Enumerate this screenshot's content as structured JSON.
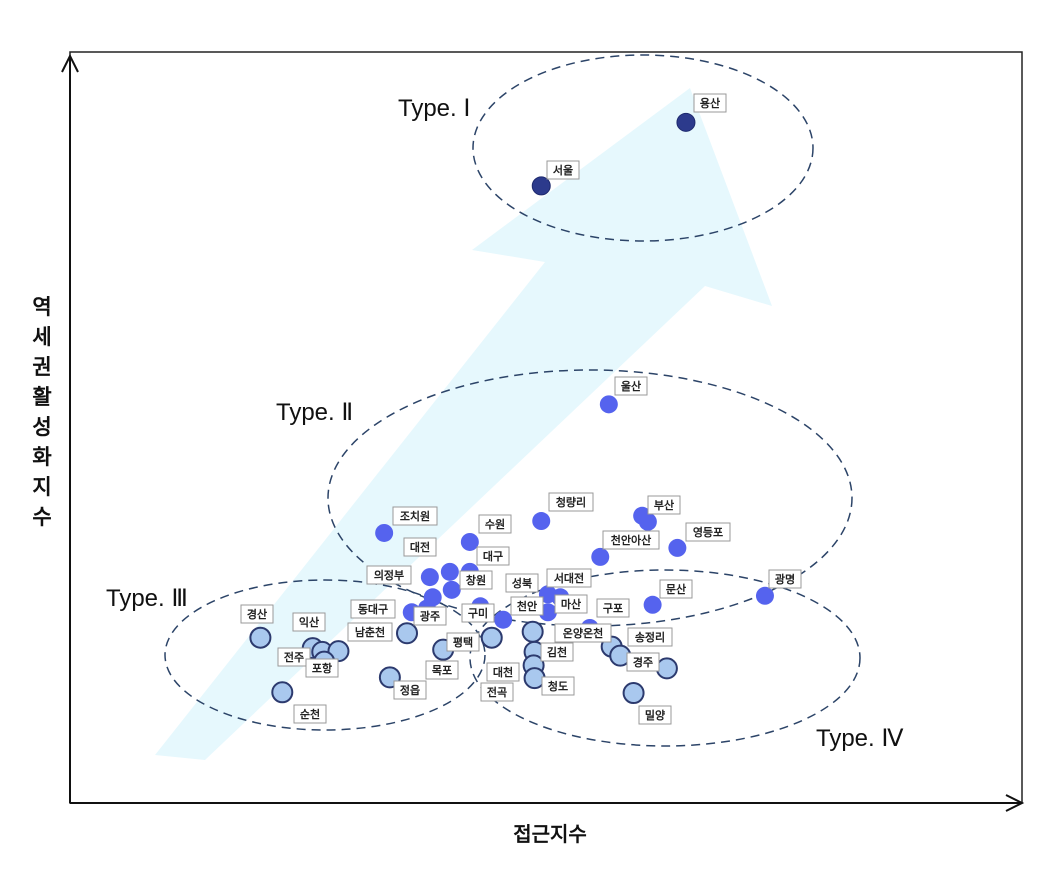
{
  "axes": {
    "ylabel": "역세권활성화지수",
    "xlabel": "접근지수"
  },
  "colors": {
    "type1": "#2c3a8c",
    "type2": "#5563ee",
    "type3": "#a9c8ee",
    "type4": "#a9c8ee",
    "border": "#2c3a6e",
    "arrow": "#e6f8fd",
    "ellipse": "#2c4468"
  },
  "chart_data": {
    "type": "scatter",
    "title": "",
    "xlabel": "접근지수",
    "ylabel": "역세권활성화지수",
    "xlim": [
      0,
      100
    ],
    "ylim": [
      0,
      100
    ],
    "groups": [
      {
        "name": "Type. Ⅰ",
        "points": [
          {
            "label": "용산",
            "x": 64.7,
            "y": 91.0
          },
          {
            "label": "서울",
            "x": 49.5,
            "y": 82.5
          }
        ]
      },
      {
        "name": "Type. Ⅱ",
        "points": [
          {
            "label": "울산",
            "x": 56.6,
            "y": 53.3
          },
          {
            "label": "청량리",
            "x": 49.5,
            "y": 37.7
          },
          {
            "label": "부산",
            "x": 60.1,
            "y": 38.4
          },
          {
            "label": "",
            "x": 60.7,
            "y": 37.6
          },
          {
            "label": "영등포",
            "x": 63.8,
            "y": 34.1
          },
          {
            "label": "천안아산",
            "x": 55.7,
            "y": 32.9
          },
          {
            "label": "조치원",
            "x": 33.0,
            "y": 36.1
          },
          {
            "label": "수원",
            "x": 42.0,
            "y": 34.9
          },
          {
            "label": "대전",
            "x": 37.8,
            "y": 30.2
          },
          {
            "label": "대구",
            "x": 42.0,
            "y": 30.9
          },
          {
            "label": "의정부",
            "x": 39.9,
            "y": 30.9
          },
          {
            "label": "창원",
            "x": 40.1,
            "y": 28.5
          },
          {
            "label": "",
            "x": 38.1,
            "y": 27.5
          },
          {
            "label": "성북",
            "x": 50.2,
            "y": 27.9
          },
          {
            "label": "서대전",
            "x": 51.5,
            "y": 27.5
          },
          {
            "label": "천안",
            "x": 45.5,
            "y": 24.5
          },
          {
            "label": "마산",
            "x": 50.2,
            "y": 25.5
          },
          {
            "label": "구포",
            "x": 54.6,
            "y": 23.4
          },
          {
            "label": "문산",
            "x": 61.2,
            "y": 26.5
          },
          {
            "label": "광명",
            "x": 73.0,
            "y": 27.7
          },
          {
            "label": "동대구",
            "x": 35.9,
            "y": 25.5
          },
          {
            "label": "광주",
            "x": 37.5,
            "y": 26.0
          },
          {
            "label": "구미",
            "x": 43.1,
            "y": 26.3
          }
        ]
      },
      {
        "name": "Type. Ⅲ",
        "points": [
          {
            "label": "경산",
            "x": 20.0,
            "y": 22.1
          },
          {
            "label": "익산",
            "x": 25.5,
            "y": 20.7
          },
          {
            "label": "전주",
            "x": 26.5,
            "y": 20.2
          },
          {
            "label": "",
            "x": 28.2,
            "y": 20.3
          },
          {
            "label": "포항",
            "x": 26.7,
            "y": 18.9
          },
          {
            "label": "남춘천",
            "x": 35.4,
            "y": 22.7
          },
          {
            "label": "순천",
            "x": 22.3,
            "y": 14.8
          },
          {
            "label": "정읍",
            "x": 33.6,
            "y": 16.8
          },
          {
            "label": "목포",
            "x": 39.2,
            "y": 20.5
          },
          {
            "label": "평택",
            "x": 44.3,
            "y": 22.1
          }
        ]
      },
      {
        "name": "Type. Ⅳ",
        "points": [
          {
            "label": "온양온천",
            "x": 48.6,
            "y": 22.9
          },
          {
            "label": "김천",
            "x": 48.8,
            "y": 20.2
          },
          {
            "label": "대천",
            "x": 48.7,
            "y": 18.4
          },
          {
            "label": "청도",
            "x": 48.8,
            "y": 16.7
          },
          {
            "label": "송정리",
            "x": 56.9,
            "y": 20.9
          },
          {
            "label": "전곡",
            "x": 57.8,
            "y": 19.7
          },
          {
            "label": "경주",
            "x": 62.7,
            "y": 18.0
          },
          {
            "label": "밀양",
            "x": 59.2,
            "y": 14.7
          }
        ]
      }
    ]
  }
}
